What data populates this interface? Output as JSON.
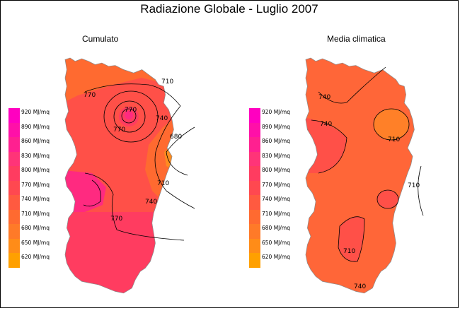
{
  "title": "Radiazione Globale - Luglio 2007",
  "panels": [
    {
      "title": "Cumulato"
    },
    {
      "title": "Media climatica"
    }
  ],
  "legend": {
    "unit": "MJ/mq",
    "entries": [
      {
        "label": "920 MJ/mq",
        "value": 920,
        "color": "#ff00c0"
      },
      {
        "label": "890 MJ/mq",
        "value": 890,
        "color": "#ff10a8"
      },
      {
        "label": "860 MJ/mq",
        "value": 860,
        "color": "#ff2090"
      },
      {
        "label": "830 MJ/mq",
        "value": 830,
        "color": "#ff3478"
      },
      {
        "label": "800 MJ/mq",
        "value": 800,
        "color": "#ff3c60"
      },
      {
        "label": "770 MJ/mq",
        "value": 770,
        "color": "#ff4850"
      },
      {
        "label": "740 MJ/mq",
        "value": 740,
        "color": "#ff5a40"
      },
      {
        "label": "710 MJ/mq",
        "value": 710,
        "color": "#ff6a30"
      },
      {
        "label": "680 MJ/mq",
        "value": 680,
        "color": "#ff7a28"
      },
      {
        "label": "650 MJ/mq",
        "value": 650,
        "color": "#ff8c18"
      },
      {
        "label": "620 MJ/mq",
        "value": 620,
        "color": "#ffa000"
      }
    ]
  },
  "contour_labels": {
    "cumulato": [
      "710",
      "770",
      "740",
      "680",
      "770",
      "770",
      "710",
      "740",
      "770"
    ],
    "media": [
      "740",
      "740",
      "710",
      "710",
      "710",
      "740"
    ]
  },
  "colors": {
    "cumulato_base": "#ff5048",
    "cumulato_north": "#ff6a30",
    "cumulato_east": "#ff8c20",
    "cumulato_south": "#ff3c60",
    "cumulato_west": "#ff2a80",
    "media_base": "#ff6638",
    "media_warm": "#ff8028",
    "media_cool": "#ff5048"
  }
}
